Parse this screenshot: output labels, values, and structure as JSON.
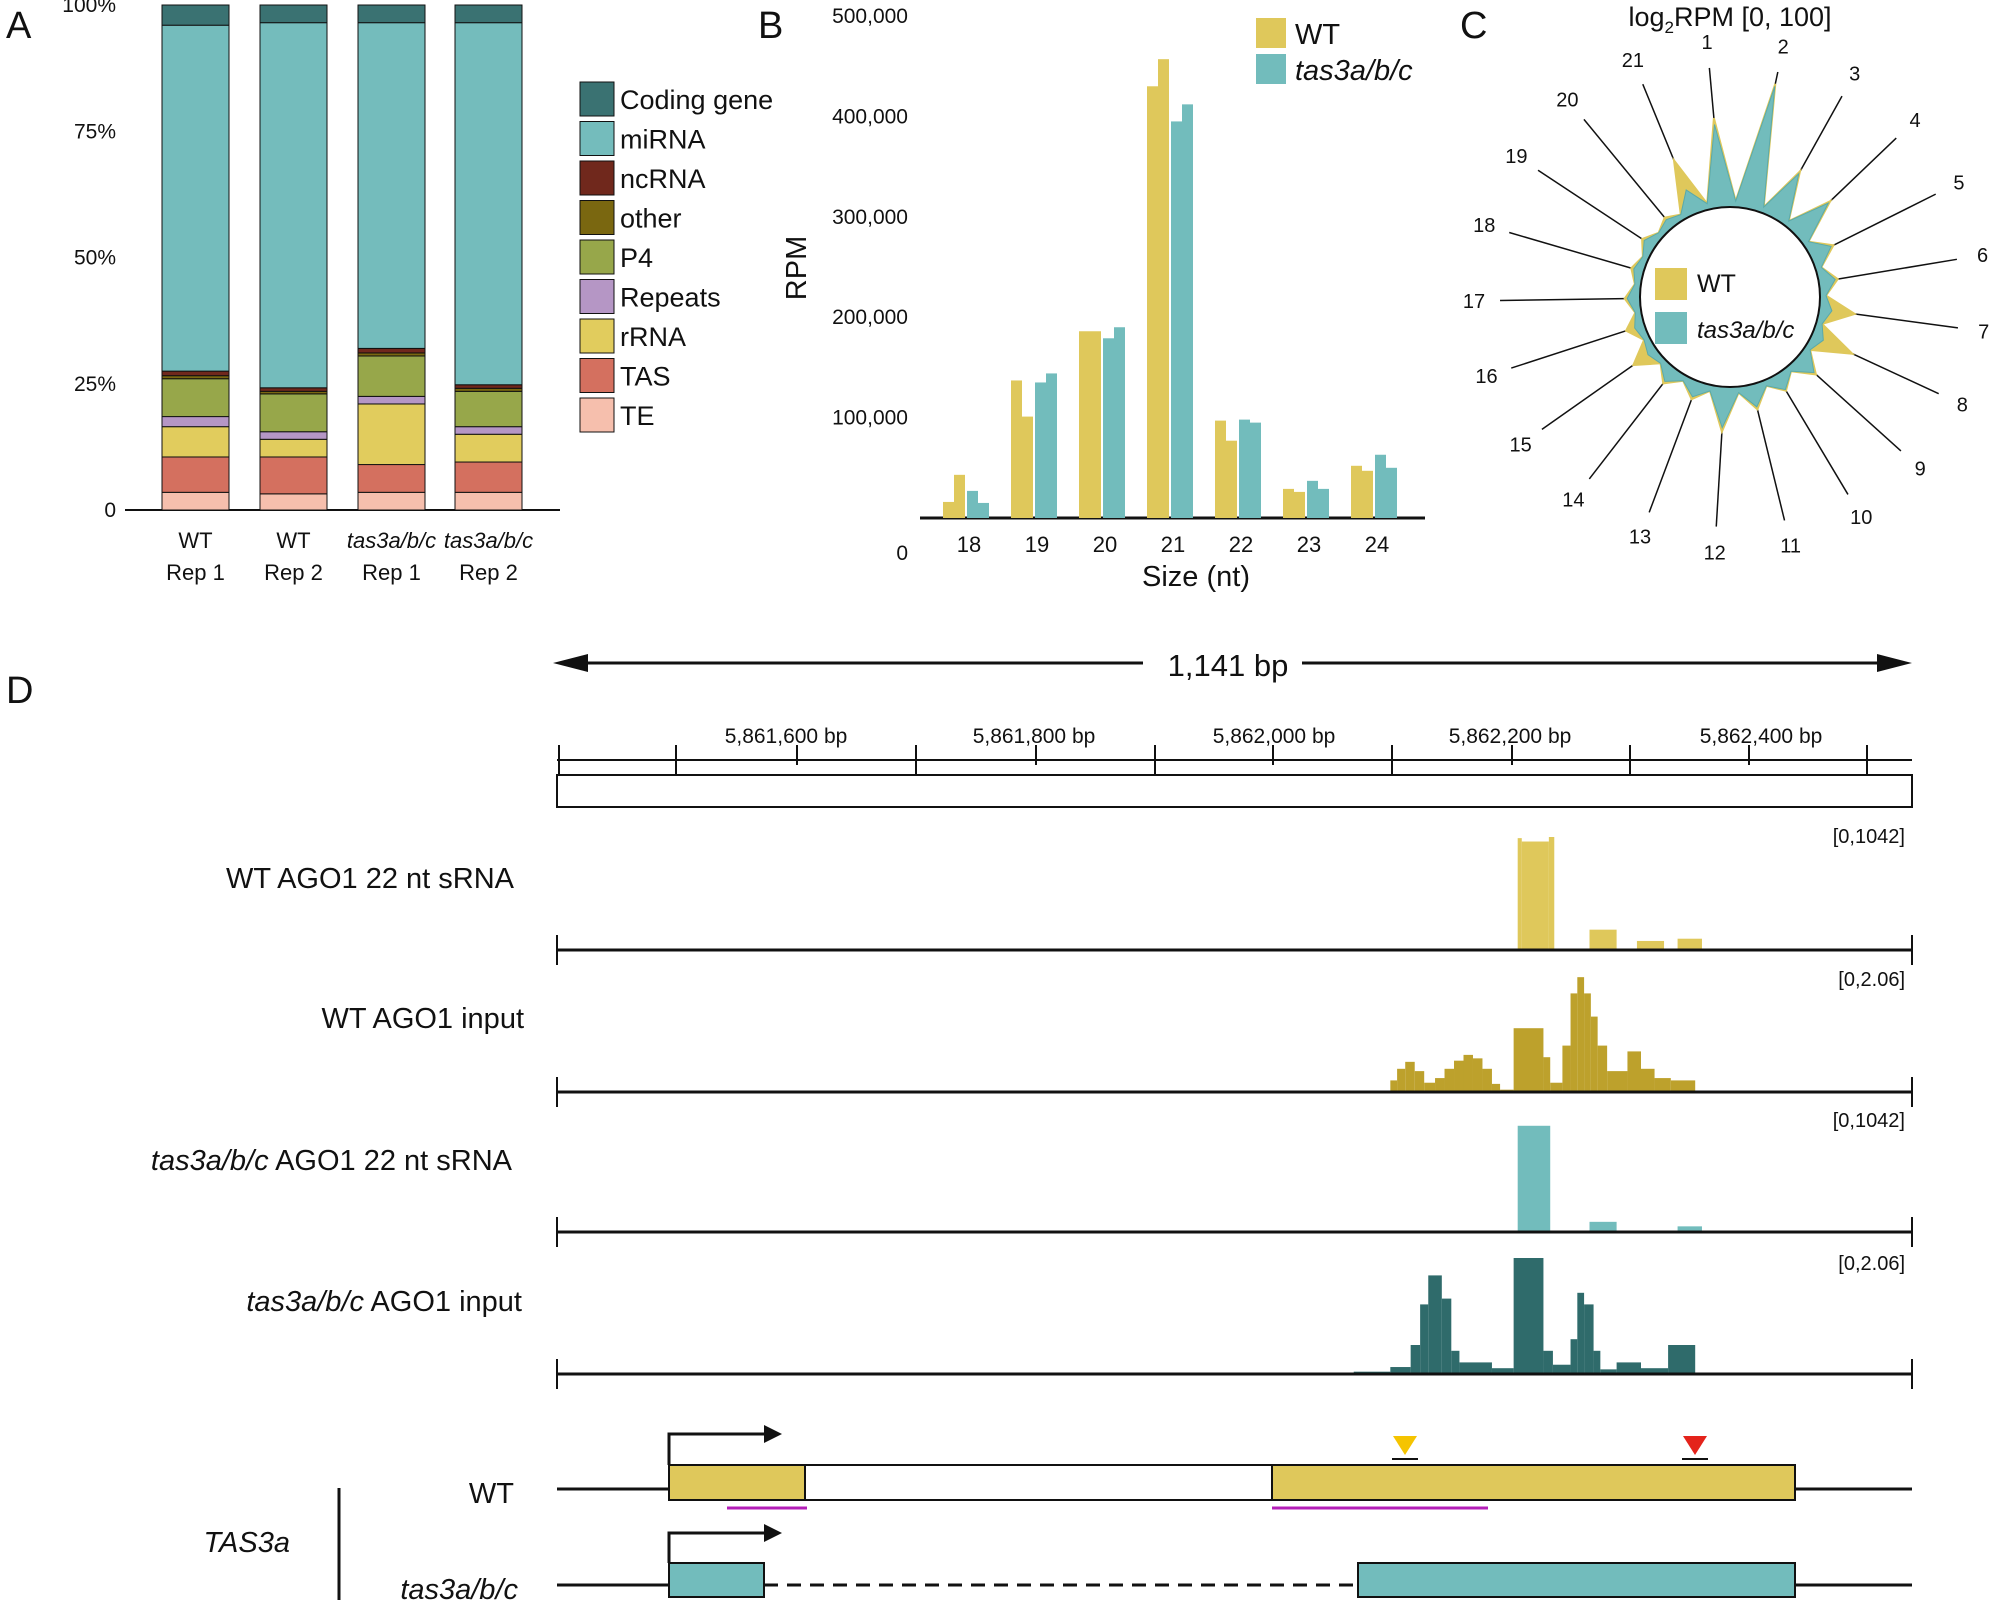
{
  "colors": {
    "wt": "#dfc85b",
    "mut": "#72bcbc",
    "wt_input": "#bda12c",
    "mut_input": "#2f6b6b",
    "coding": "#3a7272",
    "mirna": "#74bcbc",
    "ncrna": "#70281c",
    "other": "#7a6710",
    "p4": "#97a74a",
    "repeats": "#b596c5",
    "rrna": "#e1cc5d",
    "tas": "#d4705f",
    "te": "#f6bfad",
    "purple": "#b41fb8",
    "arrow_yellow": "#f5c400",
    "arrow_red": "#e4231b"
  },
  "panel_labels": {
    "a": "A",
    "b": "B",
    "c": "C",
    "d": "D"
  },
  "chart_data": [
    {
      "id": "A",
      "type": "bar",
      "stacked": true,
      "categories": [
        "WT Rep 1",
        "WT Rep 2",
        "tas3a/b/c Rep 1",
        "tas3a/b/c Rep 2"
      ],
      "category_lines": [
        [
          "WT",
          "Rep 1"
        ],
        [
          "WT",
          "Rep 2"
        ],
        [
          "tas3a/b/c",
          "Rep 1"
        ],
        [
          "tas3a/b/c",
          "Rep 2"
        ]
      ],
      "ylim": [
        0,
        100
      ],
      "yticks": [
        0,
        25,
        50,
        75,
        100
      ],
      "ytick_labels": [
        "0",
        "25%",
        "50%",
        "75%",
        "100%"
      ],
      "series": [
        {
          "name": "TE",
          "key": "te",
          "values": [
            3.5,
            3.2,
            3.5,
            3.5
          ]
        },
        {
          "name": "TAS",
          "key": "tas",
          "values": [
            7,
            7.3,
            5.5,
            6
          ]
        },
        {
          "name": "rRNA",
          "key": "rrna",
          "values": [
            6,
            3.5,
            12,
            5.5
          ]
        },
        {
          "name": "Repeats",
          "key": "repeats",
          "values": [
            2,
            1.5,
            1.5,
            1.5
          ]
        },
        {
          "name": "P4",
          "key": "p4",
          "values": [
            7.5,
            7.5,
            8,
            7
          ]
        },
        {
          "name": "other",
          "key": "other",
          "values": [
            0.6,
            0.5,
            0.6,
            0.6
          ]
        },
        {
          "name": "ncRNA",
          "key": "ncrna",
          "values": [
            0.9,
            0.7,
            0.9,
            0.7
          ]
        },
        {
          "name": "miRNA",
          "key": "mirna",
          "values": [
            68.5,
            72.3,
            64.5,
            71.7
          ]
        },
        {
          "name": "Coding gene",
          "key": "coding",
          "values": [
            4,
            3.5,
            3.5,
            3.5
          ]
        }
      ],
      "legend": [
        "Coding gene",
        "miRNA",
        "ncRNA",
        "other",
        "P4",
        "Repeats",
        "rRNA",
        "TAS",
        "TE"
      ],
      "legend_keys": [
        "coding",
        "mirna",
        "ncrna",
        "other",
        "p4",
        "repeats",
        "rrna",
        "tas",
        "te"
      ]
    },
    {
      "id": "B",
      "type": "bar",
      "title": "",
      "xlabel": "Size (nt)",
      "ylabel": "RPM",
      "categories": [
        "18",
        "19",
        "20",
        "21",
        "22",
        "23",
        "24"
      ],
      "ylim": [
        0,
        500000
      ],
      "yticks": [
        0,
        100000,
        200000,
        300000,
        400000,
        500000
      ],
      "ytick_labels": [
        "0",
        "100,000",
        "200,000",
        "300,000",
        "400,000",
        "500,000"
      ],
      "series": [
        {
          "name": "WT",
          "key": "wt",
          "values": [
            [
              16000,
              43000
            ],
            [
              137000,
              101000
            ],
            [
              186000,
              186000
            ],
            [
              430000,
              457000
            ],
            [
              97000,
              77000
            ],
            [
              29000,
              26000
            ],
            [
              52000,
              47000
            ]
          ]
        },
        {
          "name": "tas3a/b/c",
          "key": "mut",
          "values": [
            [
              27000,
              15000
            ],
            [
              135000,
              144000
            ],
            [
              179000,
              190000
            ],
            [
              395000,
              412000
            ],
            [
              98000,
              95000
            ],
            [
              37000,
              29000
            ],
            [
              63000,
              50000
            ]
          ]
        }
      ],
      "legend": [
        "WT",
        "tas3a/b/c"
      ]
    },
    {
      "id": "C",
      "type": "radar",
      "title": "log2RPM [0, 100]",
      "title_main": "log",
      "title_sub": "2",
      "title_rest": "RPM [0, 100]",
      "axis_labels": [
        "1",
        "2",
        "3",
        "4",
        "5",
        "6",
        "7",
        "8",
        "9",
        "10",
        "11",
        "12",
        "13",
        "14",
        "15",
        "16",
        "17",
        "18",
        "19",
        "20",
        "21"
      ],
      "rlim": [
        0,
        100
      ],
      "series": [
        {
          "name": "WT",
          "key": "wt",
          "values": [
            70,
            100,
            42,
            38,
            20,
            15,
            28,
            35,
            20,
            15,
            20,
            35,
            15,
            15,
            22,
            15,
            12,
            10,
            12,
            10,
            45
          ]
        },
        {
          "name": "tas3a/b/c",
          "key": "mut",
          "values": [
            65,
            98,
            40,
            36,
            18,
            13,
            10,
            10,
            18,
            14,
            18,
            32,
            13,
            13,
            8,
            8,
            10,
            8,
            10,
            8,
            20
          ]
        }
      ],
      "legend": [
        "WT",
        "tas3a/b/c"
      ]
    }
  ],
  "panel_d": {
    "span_label": "1,141 bp",
    "ruler_labels": [
      "5,861,600 bp",
      "5,861,800 bp",
      "5,862,000 bp",
      "5,862,200 bp",
      "5,862,400 bp"
    ],
    "tracks": [
      {
        "label_italic": "",
        "label": "WT  AGO1 22 nt sRNA",
        "range": "[0,1042]",
        "key": "wt",
        "bars": [
          [
            0.709,
            0.712,
            0.99
          ],
          [
            0.712,
            0.732,
            0.96
          ],
          [
            0.732,
            0.736,
            1.0
          ],
          [
            0.762,
            0.782,
            0.18
          ],
          [
            0.797,
            0.817,
            0.08
          ],
          [
            0.827,
            0.845,
            0.1
          ]
        ]
      },
      {
        "label_italic": "",
        "label": "WT  AGO1 input",
        "range": "[0,2.06]",
        "key": "wt_input",
        "bars": [
          [
            0.615,
            0.62,
            0.1
          ],
          [
            0.62,
            0.626,
            0.2
          ],
          [
            0.626,
            0.633,
            0.26
          ],
          [
            0.633,
            0.64,
            0.18
          ],
          [
            0.64,
            0.648,
            0.08
          ],
          [
            0.648,
            0.655,
            0.12
          ],
          [
            0.655,
            0.662,
            0.2
          ],
          [
            0.662,
            0.669,
            0.27
          ],
          [
            0.669,
            0.676,
            0.32
          ],
          [
            0.676,
            0.683,
            0.29
          ],
          [
            0.683,
            0.69,
            0.2
          ],
          [
            0.69,
            0.696,
            0.07
          ],
          [
            0.696,
            0.706,
            0.02
          ],
          [
            0.706,
            0.728,
            0.55
          ],
          [
            0.728,
            0.733,
            0.3
          ],
          [
            0.733,
            0.742,
            0.08
          ],
          [
            0.742,
            0.748,
            0.4
          ],
          [
            0.748,
            0.753,
            0.85
          ],
          [
            0.753,
            0.758,
            0.99
          ],
          [
            0.758,
            0.763,
            0.85
          ],
          [
            0.763,
            0.768,
            0.65
          ],
          [
            0.768,
            0.775,
            0.4
          ],
          [
            0.775,
            0.79,
            0.18
          ],
          [
            0.79,
            0.8,
            0.35
          ],
          [
            0.8,
            0.81,
            0.2
          ],
          [
            0.81,
            0.822,
            0.12
          ],
          [
            0.822,
            0.84,
            0.1
          ]
        ]
      },
      {
        "label_italic": "tas3a/b/c",
        "label": "  AGO1 22 nt  sRNA",
        "range": "[0,1042]",
        "key": "mut",
        "bars": [
          [
            0.709,
            0.733,
            0.94
          ],
          [
            0.762,
            0.782,
            0.09
          ],
          [
            0.827,
            0.845,
            0.05
          ]
        ]
      },
      {
        "label_italic": "tas3a/b/c",
        "label": "  AGO1 input",
        "range": "[0,2.06]",
        "key": "mut_input",
        "bars": [
          [
            0.588,
            0.615,
            0.02
          ],
          [
            0.615,
            0.63,
            0.06
          ],
          [
            0.63,
            0.637,
            0.25
          ],
          [
            0.637,
            0.643,
            0.6
          ],
          [
            0.643,
            0.653,
            0.85
          ],
          [
            0.653,
            0.66,
            0.65
          ],
          [
            0.66,
            0.666,
            0.2
          ],
          [
            0.666,
            0.69,
            0.1
          ],
          [
            0.69,
            0.706,
            0.05
          ],
          [
            0.706,
            0.728,
            1.0
          ],
          [
            0.728,
            0.735,
            0.2
          ],
          [
            0.735,
            0.748,
            0.08
          ],
          [
            0.748,
            0.753,
            0.3
          ],
          [
            0.753,
            0.758,
            0.7
          ],
          [
            0.758,
            0.765,
            0.6
          ],
          [
            0.765,
            0.77,
            0.2
          ],
          [
            0.77,
            0.782,
            0.04
          ],
          [
            0.782,
            0.8,
            0.1
          ],
          [
            0.8,
            0.82,
            0.05
          ],
          [
            0.82,
            0.84,
            0.25
          ]
        ]
      }
    ],
    "gene_label": "TAS3a",
    "wt_label": "WT",
    "mut_label": "tas3a/b/c"
  }
}
